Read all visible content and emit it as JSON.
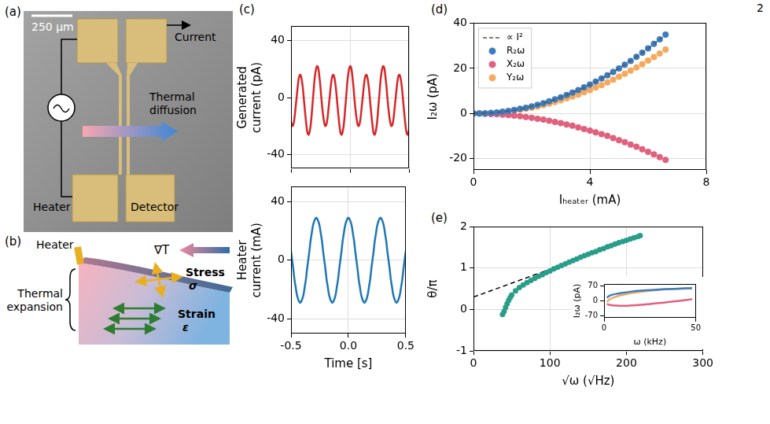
{
  "page_number": "2",
  "diagrams": {
    "a": {
      "panel": "(a)",
      "scale_bar": "250 μm",
      "labels": {
        "current": "Current",
        "diffusion": "Thermal diffusion",
        "heater": "Heater",
        "detector": "Detector"
      }
    },
    "b": {
      "panel": "(b)",
      "labels": {
        "heater": "Heater",
        "gradient": "∇T",
        "expansion": "Thermal expansion",
        "stress": "Stress",
        "stress_symbol": "σ",
        "strain": "Strain",
        "strain_symbol": "ε"
      }
    }
  },
  "chart_data": [
    {
      "panel": "(c)",
      "type": "line",
      "x": [
        -0.5,
        -0.49,
        -0.48,
        -0.47,
        -0.46,
        -0.45,
        -0.44,
        -0.43,
        -0.42,
        -0.41,
        -0.4,
        -0.39,
        -0.38,
        -0.37,
        -0.36,
        -0.35,
        -0.34,
        -0.33,
        -0.32,
        -0.31,
        -0.3,
        -0.29,
        -0.28,
        -0.27,
        -0.26,
        -0.25,
        -0.24,
        -0.23,
        -0.22,
        -0.21,
        -0.2,
        -0.19,
        -0.18,
        -0.17,
        -0.16,
        -0.15,
        -0.14,
        -0.13,
        -0.12,
        -0.11,
        -0.1,
        -0.09,
        -0.08,
        -0.07,
        -0.06,
        -0.05,
        -0.04,
        -0.03,
        -0.02,
        -0.01,
        0,
        0.01,
        0.02,
        0.03,
        0.04,
        0.05,
        0.06,
        0.07,
        0.08,
        0.09,
        0.1,
        0.11,
        0.12,
        0.13,
        0.14,
        0.15,
        0.16,
        0.17,
        0.18,
        0.19,
        0.2,
        0.21,
        0.22,
        0.23,
        0.24,
        0.25,
        0.26,
        0.27,
        0.28,
        0.29,
        0.3,
        0.31,
        0.32,
        0.33,
        0.34,
        0.35,
        0.36,
        0.37,
        0.38,
        0.39,
        0.4,
        0.41,
        0.42,
        0.43,
        0.44,
        0.45,
        0.46,
        0.47,
        0.48,
        0.49,
        0.5
      ],
      "ylabel": "Generated current (pA)",
      "xlim": [
        -0.5,
        0.5
      ],
      "xticks": [
        -0.5,
        {
          "value": 0,
          "label": "0.0"
        },
        0.5
      ],
      "ylim": [
        -50,
        50
      ],
      "yticks": [
        -40,
        0,
        40
      ],
      "grid": true,
      "tick_labels": "y",
      "series": [
        {
          "color": "#d62728",
          "values": [
            -17,
            -20,
            -19,
            -14,
            -6,
            2,
            10,
            15,
            16,
            13,
            7,
            -2,
            -11,
            -19,
            -25,
            -26,
            -23,
            -17,
            -7,
            3,
            13,
            19,
            22,
            21,
            15,
            7,
            -3,
            -11,
            -17,
            -20,
            -19,
            -14,
            -6,
            2,
            10,
            15,
            16,
            13,
            7,
            -2,
            -11,
            -19,
            -25,
            -26,
            -23,
            -17,
            -7,
            3,
            13,
            19,
            22,
            21,
            15,
            7,
            -3,
            -11,
            -17,
            -20,
            -19,
            -14,
            -6,
            2,
            10,
            15,
            16,
            13,
            7,
            -2,
            -11,
            -19,
            -25,
            -26,
            -23,
            -17,
            -7,
            3,
            13,
            19,
            22,
            21,
            15,
            7,
            -3,
            -11,
            -17,
            -20,
            -19,
            -14,
            -6,
            2,
            10,
            15,
            16,
            13,
            7,
            -2,
            -11,
            -19,
            -25,
            -26,
            -23
          ]
        }
      ]
    },
    {
      "type": "line",
      "x": [
        -0.5,
        -0.49,
        -0.48,
        -0.47,
        -0.46,
        -0.45,
        -0.44,
        -0.43,
        -0.42,
        -0.41,
        -0.4,
        -0.39,
        -0.38,
        -0.37,
        -0.36,
        -0.35,
        -0.34,
        -0.33,
        -0.32,
        -0.31,
        -0.3,
        -0.29,
        -0.28,
        -0.27,
        -0.26,
        -0.25,
        -0.24,
        -0.23,
        -0.22,
        -0.21,
        -0.2,
        -0.19,
        -0.18,
        -0.17,
        -0.16,
        -0.15,
        -0.14,
        -0.13,
        -0.12,
        -0.11,
        -0.1,
        -0.09,
        -0.08,
        -0.07,
        -0.06,
        -0.05,
        -0.04,
        -0.03,
        -0.02,
        -0.01,
        0,
        0.01,
        0.02,
        0.03,
        0.04,
        0.05,
        0.06,
        0.07,
        0.08,
        0.09,
        0.1,
        0.11,
        0.12,
        0.13,
        0.14,
        0.15,
        0.16,
        0.17,
        0.18,
        0.19,
        0.2,
        0.21,
        0.22,
        0.23,
        0.24,
        0.25,
        0.26,
        0.27,
        0.28,
        0.29,
        0.3,
        0.31,
        0.32,
        0.33,
        0.34,
        0.35,
        0.36,
        0.37,
        0.38,
        0.39,
        0.4,
        0.41,
        0.42,
        0.43,
        0.44,
        0.45,
        0.46,
        0.47,
        0.48,
        0.49,
        0.5
      ],
      "xlabel": "Time [s]",
      "ylabel": "Heater current (mA)",
      "xlim": [
        -0.5,
        0.5
      ],
      "xticks": [
        -0.5,
        {
          "value": 0,
          "label": "0.0"
        },
        0.5
      ],
      "ylim": [
        -50,
        50
      ],
      "yticks": [
        -40,
        0,
        40
      ],
      "grid": true,
      "series": [
        {
          "color": "#1f77b4",
          "values": [
            6,
            0,
            -6,
            -13,
            -18,
            -23,
            -26,
            -28,
            -29,
            -28,
            -26,
            -23,
            -18,
            -13,
            -6,
            0,
            6,
            13,
            18,
            23,
            26,
            28,
            29,
            28,
            26,
            23,
            18,
            13,
            6,
            0,
            -6,
            -13,
            -18,
            -23,
            -26,
            -28,
            -29,
            -28,
            -26,
            -23,
            -18,
            -13,
            -6,
            0,
            6,
            13,
            18,
            23,
            26,
            28,
            29,
            28,
            26,
            23,
            18,
            13,
            6,
            0,
            -6,
            -13,
            -18,
            -23,
            -26,
            -28,
            -29,
            -28,
            -26,
            -23,
            -18,
            -13,
            -6,
            0,
            6,
            13,
            18,
            23,
            26,
            28,
            29,
            28,
            26,
            23,
            18,
            13,
            6,
            0,
            -6,
            -13,
            -18,
            -23,
            -26,
            -28,
            -29,
            -28,
            -26,
            -23,
            -18,
            -13,
            -6,
            0,
            6
          ]
        }
      ]
    },
    {
      "panel": "(d)",
      "type": "scatter",
      "x": [
        0,
        0.2,
        0.4,
        0.6,
        0.8,
        1,
        1.2,
        1.4,
        1.6,
        1.8,
        2,
        2.2,
        2.4,
        2.6,
        2.8,
        3,
        3.2,
        3.4,
        3.6,
        3.8,
        4,
        4.2,
        4.4,
        4.6,
        4.8,
        5,
        5.2,
        5.4,
        5.6,
        5.8,
        6,
        6.2,
        6.4,
        6.6
      ],
      "xlabel": "Iₕₑₐₜₑᵣ (mA)",
      "ylabel": "I₂ω (pA)",
      "xlim": [
        0,
        8
      ],
      "xticks": [
        0,
        4,
        8
      ],
      "ylim": [
        -25,
        40
      ],
      "yticks": [
        -20,
        0,
        20,
        40
      ],
      "grid": true,
      "legend": "upper left",
      "series": [
        {
          "name": "∝ I²",
          "type": "line",
          "line_style": "dashed",
          "color": "#555555",
          "x": [
            0,
            0.5,
            1,
            1.5,
            2,
            2.5,
            3,
            3.5,
            4,
            4.5,
            5,
            5.5,
            6,
            6.5
          ],
          "values": [
            0,
            0.2,
            0.8,
            1.8,
            3.2,
            5,
            7.2,
            9.8,
            12.8,
            16.2,
            20,
            24.2,
            28.8,
            33.8
          ]
        },
        {
          "name": "R₂ω",
          "marker": "circle",
          "color": "#3b7dc0",
          "values": [
            0,
            0,
            0.1,
            0.3,
            0.5,
            0.8,
            1.2,
            1.6,
            2.1,
            2.6,
            3.2,
            3.9,
            4.6,
            5.4,
            6.3,
            7.2,
            8.2,
            9.3,
            10.4,
            11.6,
            12.8,
            14.1,
            15.5,
            16.9,
            18.4,
            20,
            21.6,
            23.3,
            25.1,
            26.9,
            28.8,
            30.8,
            32.8,
            34.9
          ]
        },
        {
          "name": "X₂ω",
          "marker": "circle",
          "color": "#e0607e",
          "values": [
            0,
            0,
            -0.1,
            -0.2,
            -0.3,
            -0.5,
            -0.7,
            -0.9,
            -1.2,
            -1.5,
            -1.9,
            -2.3,
            -2.7,
            -3.2,
            -3.7,
            -4.2,
            -4.8,
            -5.4,
            -6.1,
            -6.8,
            -7.5,
            -8.3,
            -9.1,
            -9.9,
            -10.8,
            -11.8,
            -12.7,
            -13.7,
            -14.7,
            -15.8,
            -16.9,
            -18.1,
            -19.3,
            -20.5
          ]
        },
        {
          "name": "Y₂ω",
          "marker": "circle",
          "color": "#f5a95c",
          "values": [
            0,
            0,
            0.1,
            0.2,
            0.4,
            0.7,
            0.9,
            1.3,
            1.7,
            2.1,
            2.6,
            3.1,
            3.7,
            4.4,
            5.1,
            5.9,
            6.7,
            7.5,
            8.4,
            9.4,
            10.4,
            11.5,
            12.6,
            13.8,
            15,
            16.3,
            17.6,
            19,
            20.4,
            21.9,
            23.4,
            25,
            26.6,
            28.3
          ]
        }
      ]
    },
    {
      "panel": "(e)",
      "type": "scatter",
      "x": [
        38,
        40,
        42,
        44,
        46,
        48,
        50,
        55,
        60,
        65,
        70,
        75,
        80,
        85,
        90,
        95,
        100,
        105,
        110,
        115,
        120,
        125,
        130,
        135,
        140,
        145,
        150,
        155,
        160,
        165,
        170,
        175,
        180,
        185,
        190,
        195,
        200,
        205,
        210,
        215,
        218
      ],
      "xlabel": "√ω (√Hz)",
      "ylabel": "θ/π",
      "xlim": [
        0,
        300
      ],
      "xticks": [
        0,
        100,
        200,
        300
      ],
      "ylim": [
        -1,
        2
      ],
      "yticks": [
        -1,
        0,
        1,
        2
      ],
      "grid": true,
      "series": [
        {
          "marker": "circle",
          "color": "#2a9d8a",
          "values": [
            -0.12,
            -0.05,
            0.05,
            0.14,
            0.22,
            0.29,
            0.35,
            0.45,
            0.53,
            0.59,
            0.65,
            0.7,
            0.75,
            0.8,
            0.84,
            0.89,
            0.93,
            0.98,
            1.02,
            1.06,
            1.1,
            1.14,
            1.18,
            1.22,
            1.26,
            1.3,
            1.33,
            1.37,
            1.4,
            1.44,
            1.47,
            1.51,
            1.54,
            1.58,
            1.61,
            1.64,
            1.67,
            1.7,
            1.73,
            1.76,
            1.78
          ]
        },
        {
          "type": "line",
          "line_style": "dashed",
          "color": "#000000",
          "x": [
            0,
            215
          ],
          "values": [
            0.3,
            1.74
          ]
        }
      ],
      "inset": {
        "type": "line",
        "x": [
          1.6,
          3,
          5,
          7.5,
          10,
          15,
          20,
          25,
          30,
          35,
          40,
          45,
          48
        ],
        "xlabel": "ω (kHz)",
        "ylabel": "I₂ω (pA)",
        "xlim": [
          0,
          50
        ],
        "xticks": [
          0,
          50
        ],
        "ylim": [
          -80,
          80
        ],
        "yticks": [
          -70,
          0,
          70
        ],
        "series": [
          {
            "color": "#3b7dc0",
            "values": [
              15,
              24,
              30,
              34,
              38,
              44,
              48,
              51,
              54,
              56,
              58,
              59,
              60
            ]
          },
          {
            "color": "#f5a95c",
            "values": [
              -5,
              6,
              15,
              22,
              28,
              37,
              43,
              48,
              52,
              55,
              57,
              59,
              60
            ]
          },
          {
            "color": "#e0607e",
            "values": [
              -15,
              -19,
              -22,
              -23,
              -24,
              -22,
              -19,
              -15,
              -11,
              -6,
              -1,
              4,
              8
            ]
          }
        ]
      }
    }
  ]
}
